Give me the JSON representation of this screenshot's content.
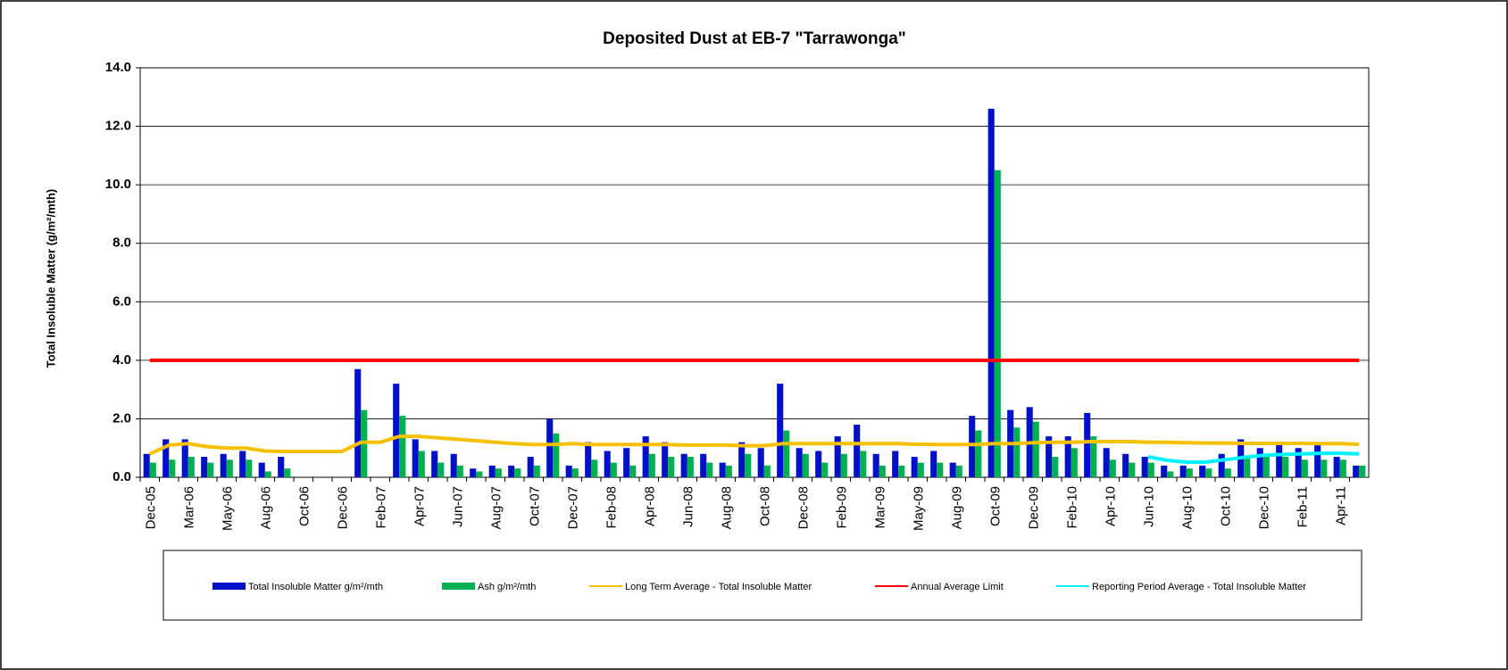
{
  "chart_data": {
    "type": "bar",
    "title": "Deposited Dust at EB-7 \"Tarrawonga\"",
    "y_label": "Total Insoluble Matter  (g/m²/mth)",
    "categories": [
      "Dec-05",
      null,
      "Mar-06",
      null,
      "May-06",
      null,
      "Aug-06",
      null,
      "Oct-06",
      null,
      "Dec-06",
      null,
      "Feb-07",
      null,
      "Apr-07",
      null,
      "Jun-07",
      null,
      "Aug-07",
      null,
      "Oct-07",
      null,
      "Dec-07",
      null,
      "Feb-08",
      null,
      "Apr-08",
      null,
      "Jun-08",
      null,
      "Aug-08",
      null,
      "Oct-08",
      null,
      "Dec-08",
      null,
      "Feb-09",
      null,
      "Mar-09",
      null,
      "May-09",
      null,
      "Aug-09",
      null,
      "Oct-09",
      null,
      "Dec-09",
      null,
      "Feb-10",
      null,
      "Apr-10",
      null,
      "Jun-10",
      null,
      "Aug-10",
      null,
      "Oct-10",
      null,
      "Dec-10",
      null,
      "Feb-11",
      null,
      "Apr-11",
      null
    ],
    "ylim": [
      0,
      14
    ],
    "yticks": [
      {
        "value": 0,
        "label": "0.0"
      },
      {
        "value": 2,
        "label": "2.0"
      },
      {
        "value": 4,
        "label": "4.0"
      },
      {
        "value": 6,
        "label": "6.0"
      },
      {
        "value": 8,
        "label": "8.0"
      },
      {
        "value": 10,
        "label": "10.0"
      },
      {
        "value": 12,
        "label": "12.0"
      },
      {
        "value": 14,
        "label": "14.0"
      }
    ],
    "grid": true,
    "legend": "bottom",
    "series": [
      {
        "name": "Total Insoluble Matter  g/m²/mth",
        "type": "bar",
        "color": "#0010c8",
        "values": [
          0.8,
          1.3,
          1.3,
          0.7,
          0.8,
          0.9,
          0.5,
          0.7,
          null,
          null,
          null,
          3.7,
          null,
          3.2,
          1.3,
          0.9,
          0.8,
          0.3,
          0.4,
          0.4,
          0.7,
          2.0,
          0.4,
          1.2,
          0.9,
          1.0,
          1.4,
          1.2,
          0.8,
          0.8,
          0.5,
          1.2,
          1.0,
          3.2,
          1.0,
          0.9,
          1.4,
          1.8,
          0.8,
          0.9,
          0.7,
          0.9,
          0.5,
          2.1,
          12.6,
          2.3,
          2.4,
          1.4,
          1.4,
          2.2,
          1.0,
          0.8,
          0.7,
          0.4,
          0.4,
          0.4,
          0.8,
          1.3,
          1.0,
          1.1,
          1.0,
          1.1,
          0.7,
          0.4
        ]
      },
      {
        "name": "Ash  g/m²/mth",
        "type": "bar",
        "color": "#00b050",
        "values": [
          0.5,
          0.6,
          0.7,
          0.5,
          0.6,
          0.6,
          0.2,
          0.3,
          null,
          null,
          null,
          2.3,
          null,
          2.1,
          0.9,
          0.5,
          0.4,
          0.2,
          0.3,
          0.3,
          0.4,
          1.5,
          0.3,
          0.6,
          0.5,
          0.4,
          0.8,
          0.7,
          0.7,
          0.5,
          0.4,
          0.8,
          0.4,
          1.6,
          0.8,
          0.5,
          0.8,
          0.9,
          0.4,
          0.4,
          0.5,
          0.5,
          0.4,
          1.6,
          10.5,
          1.7,
          1.9,
          0.7,
          1.0,
          1.4,
          0.6,
          0.5,
          0.5,
          0.2,
          0.3,
          0.3,
          0.3,
          0.7,
          0.7,
          0.7,
          0.6,
          0.6,
          0.6,
          0.4
        ]
      },
      {
        "name": "Long Term Average - Total Insoluble Matter",
        "type": "line",
        "color": "#f5c000",
        "values": [
          0.8,
          1.1,
          1.15,
          1.05,
          1.0,
          1.0,
          0.9,
          0.88,
          0.88,
          0.88,
          0.88,
          1.2,
          1.2,
          1.4,
          1.4,
          1.35,
          1.3,
          1.25,
          1.2,
          1.15,
          1.12,
          1.12,
          1.15,
          1.12,
          1.12,
          1.12,
          1.12,
          1.12,
          1.1,
          1.1,
          1.1,
          1.08,
          1.08,
          1.15,
          1.15,
          1.15,
          1.15,
          1.15,
          1.15,
          1.15,
          1.13,
          1.12,
          1.12,
          1.12,
          1.15,
          1.15,
          1.18,
          1.2,
          1.2,
          1.22,
          1.22,
          1.22,
          1.2,
          1.2,
          1.18,
          1.17,
          1.17,
          1.16,
          1.16,
          1.16,
          1.16,
          1.15,
          1.15,
          1.13
        ]
      },
      {
        "name": "Annual Average Limit",
        "type": "line",
        "color": "#ff0000",
        "values": [
          4,
          4,
          4,
          4,
          4,
          4,
          4,
          4,
          4,
          4,
          4,
          4,
          4,
          4,
          4,
          4,
          4,
          4,
          4,
          4,
          4,
          4,
          4,
          4,
          4,
          4,
          4,
          4,
          4,
          4,
          4,
          4,
          4,
          4,
          4,
          4,
          4,
          4,
          4,
          4,
          4,
          4,
          4,
          4,
          4,
          4,
          4,
          4,
          4,
          4,
          4,
          4,
          4,
          4,
          4,
          4,
          4,
          4,
          4,
          4,
          4,
          4,
          4,
          4
        ]
      },
      {
        "name": "Reporting Period Average - Total Insoluble Matter",
        "type": "line",
        "color": "#00f0ff",
        "values": [
          null,
          null,
          null,
          null,
          null,
          null,
          null,
          null,
          null,
          null,
          null,
          null,
          null,
          null,
          null,
          null,
          null,
          null,
          null,
          null,
          null,
          null,
          null,
          null,
          null,
          null,
          null,
          null,
          null,
          null,
          null,
          null,
          null,
          null,
          null,
          null,
          null,
          null,
          null,
          null,
          null,
          null,
          null,
          null,
          null,
          null,
          null,
          null,
          null,
          null,
          null,
          null,
          0.7,
          0.58,
          0.52,
          0.52,
          0.6,
          0.68,
          0.75,
          0.78,
          0.8,
          0.82,
          0.82,
          0.8
        ]
      }
    ]
  }
}
